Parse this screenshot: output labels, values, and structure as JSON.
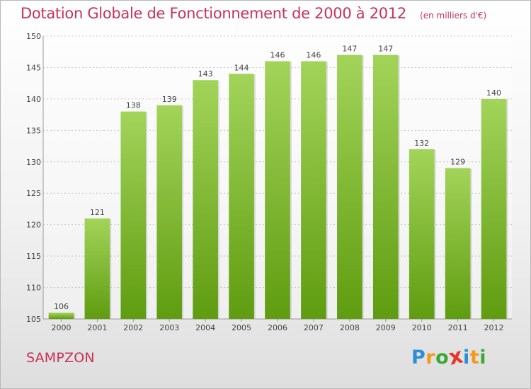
{
  "chart_data": {
    "type": "bar",
    "title": "Dotation Globale de Fonctionnement de 2000 à 2012",
    "subtitle": "(en milliers d'€)",
    "categories": [
      "2000",
      "2001",
      "2002",
      "2003",
      "2004",
      "2005",
      "2006",
      "2007",
      "2008",
      "2009",
      "2010",
      "2011",
      "2012"
    ],
    "values": [
      106,
      121,
      138,
      139,
      143,
      144,
      146,
      146,
      147,
      147,
      132,
      129,
      140
    ],
    "ylim": [
      105,
      150
    ],
    "yticks": [
      105,
      110,
      115,
      120,
      125,
      130,
      135,
      140,
      145,
      150
    ],
    "grid": true,
    "bar_color_light": "#a3d45a",
    "bar_color_dark": "#5f9c10"
  },
  "commune": "SAMPZON",
  "logo": {
    "letters": [
      "P",
      "r",
      "o",
      "x",
      "i",
      "t",
      "i"
    ],
    "colors": [
      "#2a8fd8",
      "#f29a1a",
      "#3aa935",
      "#e5372c",
      "#2a8fd8",
      "#f29a1a",
      "#3aa935"
    ]
  }
}
